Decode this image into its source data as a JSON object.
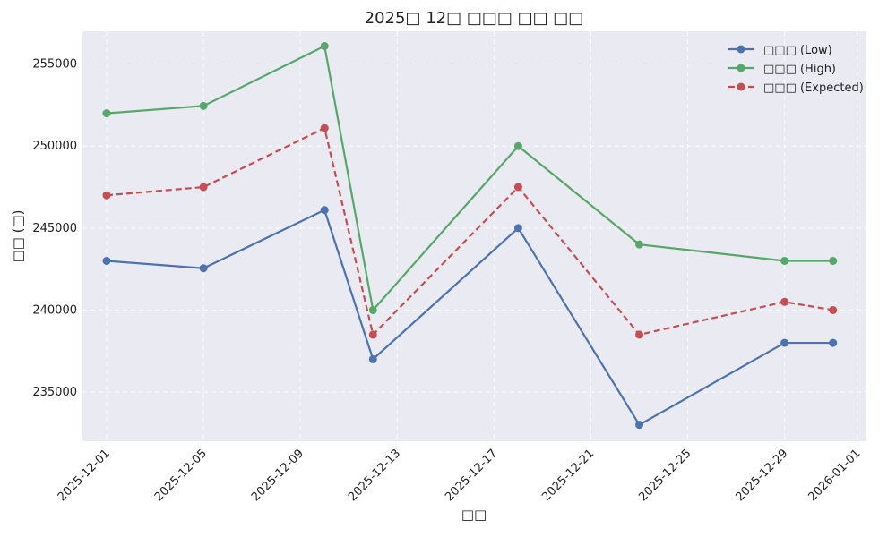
{
  "chart_data": {
    "type": "line",
    "title": "2025□ 12□ □□□ □□ □□",
    "xlabel": "□□",
    "ylabel": "□□ (□)",
    "x": [
      "2025-12-01",
      "2025-12-05",
      "2025-12-10",
      "2025-12-12",
      "2025-12-18",
      "2025-12-23",
      "2025-12-29",
      "2025-12-31"
    ],
    "x_ticks": [
      "2025-12-01",
      "2025-12-05",
      "2025-12-09",
      "2025-12-13",
      "2025-12-17",
      "2025-12-21",
      "2025-12-25",
      "2025-12-29",
      "2026-01-01"
    ],
    "y_ticks": [
      235000,
      240000,
      245000,
      250000,
      255000
    ],
    "ylim": [
      232000,
      257000
    ],
    "xlim": [
      "2025-11-30",
      "2026-01-01"
    ],
    "grid": true,
    "legend_position": "top-right",
    "series": [
      {
        "name": "□□□ (Low)",
        "color": "#4c72b0",
        "style": "solid",
        "values": [
          243000,
          242550,
          246100,
          237000,
          245000,
          233000,
          238000,
          238000
        ]
      },
      {
        "name": "□□□ (High)",
        "color": "#55a868",
        "style": "solid",
        "values": [
          252000,
          252450,
          256100,
          240000,
          250000,
          244000,
          243000,
          243000
        ]
      },
      {
        "name": "□□□ (Expected)",
        "color": "#c44e52",
        "style": "dashed",
        "values": [
          247000,
          247500,
          251100,
          238500,
          247500,
          238500,
          240500,
          240000
        ]
      }
    ]
  }
}
